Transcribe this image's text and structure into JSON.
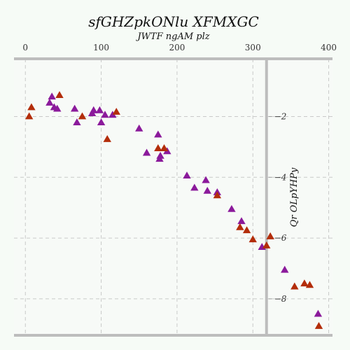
{
  "chart_data": {
    "type": "scatter",
    "title": "sfGHZpkONlu XFMXGC",
    "xlabel": "JWTF ngAM plz",
    "ylabel": "Qr OLpYHPy",
    "xlim": [
      -15,
      405
    ],
    "ylim": [
      -9.2,
      -0.1
    ],
    "xticks": [
      0,
      100,
      200,
      300,
      400
    ],
    "yticks": [
      -2,
      -4,
      -6,
      -8
    ],
    "xaxis_position": "top",
    "yaxis_position": "right",
    "yaxis_at_x": 318,
    "grid": true,
    "colors": {
      "purple": "#8b1a9b",
      "red": "#b32d0a"
    },
    "series": [
      {
        "color_key": "purple",
        "points": [
          [
            32,
            -1.55
          ],
          [
            35,
            -1.35
          ],
          [
            38,
            -1.7
          ],
          [
            42,
            -1.75
          ],
          [
            65,
            -1.75
          ],
          [
            68,
            -2.2
          ],
          [
            88,
            -1.9
          ],
          [
            90,
            -1.8
          ],
          [
            98,
            -1.8
          ],
          [
            100,
            -2.2
          ],
          [
            105,
            -1.95
          ],
          [
            115,
            -1.95
          ],
          [
            150,
            -2.4
          ],
          [
            160,
            -3.2
          ],
          [
            175,
            -2.6
          ],
          [
            177,
            -3.4
          ],
          [
            178,
            -3.3
          ],
          [
            187,
            -3.15
          ],
          [
            213,
            -3.95
          ],
          [
            223,
            -4.35
          ],
          [
            238,
            -4.1
          ],
          [
            240,
            -4.45
          ],
          [
            253,
            -4.5
          ],
          [
            272,
            -5.05
          ],
          [
            285,
            -5.45
          ],
          [
            312,
            -6.3
          ],
          [
            342,
            -7.05
          ],
          [
            386,
            -8.5
          ]
        ]
      },
      {
        "color_key": "red",
        "points": [
          [
            5,
            -2.0
          ],
          [
            8,
            -1.7
          ],
          [
            45,
            -1.3
          ],
          [
            75,
            -2.0
          ],
          [
            108,
            -2.75
          ],
          [
            120,
            -1.85
          ],
          [
            175,
            -3.05
          ],
          [
            183,
            -3.05
          ],
          [
            253,
            -4.6
          ],
          [
            283,
            -5.65
          ],
          [
            292,
            -5.75
          ],
          [
            300,
            -6.05
          ],
          [
            318,
            -6.25
          ],
          [
            323,
            -5.95
          ],
          [
            355,
            -7.6
          ],
          [
            368,
            -7.5
          ],
          [
            375,
            -7.55
          ],
          [
            387,
            -8.9
          ]
        ]
      }
    ]
  }
}
